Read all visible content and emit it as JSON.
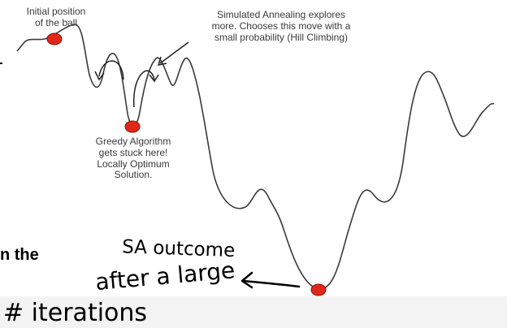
{
  "annotations": {
    "initial": [
      "Initial position",
      "of the ball"
    ],
    "sa": [
      "Simulated Annealing explores",
      "more. Chooses this move with a",
      "small probability (Hill Climbing)"
    ],
    "greedy": [
      "Greedy Algorithm",
      "gets stuck here!",
      "Locally Optimum",
      "Solution."
    ]
  },
  "handwriting": {
    "line1": "SA outcome",
    "line2": "after a large",
    "line3": "# iterations"
  },
  "cutoff_text": "n the",
  "colors": {
    "curve": "#3a3a3a",
    "ball": "#e0281a",
    "ball_edge": "#8a1208",
    "ink": "#000000"
  }
}
